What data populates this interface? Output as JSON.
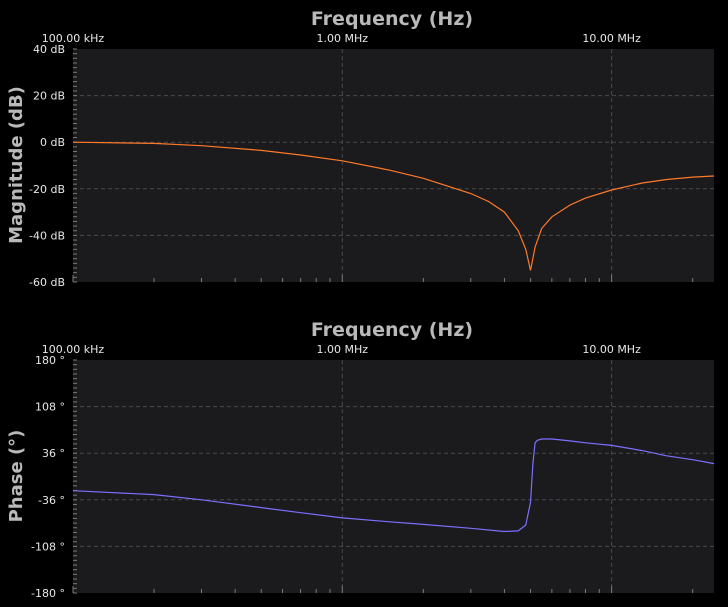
{
  "colors": {
    "background": "#000000",
    "plot_bg": "#1b1a1d",
    "magnitude_trace": "#ff7a2a",
    "phase_trace": "#7b70ff"
  },
  "chart_data": [
    {
      "type": "line",
      "title": "Frequency (Hz)",
      "xlabel": "Frequency (Hz)",
      "ylabel": "Magnitude (dB)",
      "xscale": "log",
      "xlim": [
        100000,
        24000000
      ],
      "ylim": [
        -60,
        40
      ],
      "grid": true,
      "x_ticks": [
        100000,
        1000000,
        10000000
      ],
      "x_tick_labels": [
        "100.00 kHz",
        "1.00 MHz",
        "10.00 MHz"
      ],
      "y_ticks": [
        40,
        20,
        0,
        -20,
        -40,
        -60
      ],
      "y_tick_labels": [
        "40 dB",
        "20 dB",
        "0 dB",
        "-20 dB",
        "-40 dB",
        "-60 dB"
      ],
      "series": [
        {
          "x": [
            100000,
            200000,
            300000,
            500000,
            700000,
            1000000,
            1500000,
            2000000,
            3000000,
            3500000,
            4000000,
            4500000,
            4800000,
            5000000,
            5200000,
            5500000,
            6000000,
            7000000,
            8000000,
            10000000,
            13000000,
            16000000,
            20000000,
            24000000
          ],
          "y": [
            0,
            -0.5,
            -1.5,
            -3.5,
            -5.5,
            -8,
            -12,
            -15.5,
            -22,
            -25.5,
            -30,
            -38,
            -46,
            -55,
            -45,
            -37,
            -32,
            -27,
            -24,
            -20.5,
            -17.5,
            -16,
            -15,
            -14.5
          ]
        }
      ]
    },
    {
      "type": "line",
      "title": "Frequency (Hz)",
      "xlabel": "Frequency (Hz)",
      "ylabel": "Phase (°)",
      "xscale": "log",
      "xlim": [
        100000,
        24000000
      ],
      "ylim": [
        -180,
        180
      ],
      "grid": true,
      "x_ticks": [
        100000,
        1000000,
        10000000
      ],
      "x_tick_labels": [
        "100.00 kHz",
        "1.00 MHz",
        "10.00 MHz"
      ],
      "y_ticks": [
        180,
        108,
        36,
        -36,
        -108,
        -180
      ],
      "y_tick_labels": [
        "180 °",
        "108 °",
        "36 °",
        "-36 °",
        "-108 °",
        "-180 °"
      ],
      "series": [
        {
          "x": [
            100000,
            200000,
            300000,
            500000,
            700000,
            1000000,
            1500000,
            2000000,
            3000000,
            4000000,
            4500000,
            4800000,
            5000000,
            5100000,
            5200000,
            5300000,
            5500000,
            6000000,
            7000000,
            8000000,
            10000000,
            13000000,
            16000000,
            20000000,
            24000000
          ],
          "y": [
            -22,
            -28,
            -36,
            -48,
            -56,
            -64,
            -70,
            -74,
            -80,
            -85,
            -84,
            -75,
            -40,
            20,
            52,
            56,
            58,
            58,
            55,
            52,
            48,
            40,
            32,
            26,
            20
          ]
        }
      ]
    }
  ]
}
